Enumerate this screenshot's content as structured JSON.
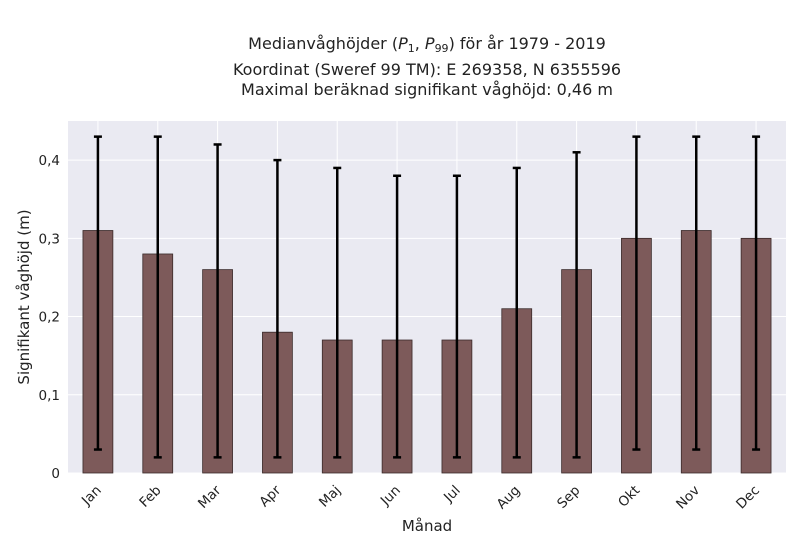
{
  "title": {
    "line1_prefix": "Medianvåghöjder (",
    "p_symbol": "P",
    "sub1": "1",
    "separator": ", ",
    "sub2": "99",
    "line1_suffix": ") för år 1979 - 2019",
    "line2": "Koordinat (Sweref 99 TM): E 269358, N 6355596",
    "line3": "Maximal beräknad signifikant våghöjd: 0,46 m"
  },
  "chart_data": {
    "type": "bar",
    "categories": [
      "Jan",
      "Feb",
      "Mar",
      "Apr",
      "Maj",
      "Jun",
      "Jul",
      "Aug",
      "Sep",
      "Okt",
      "Nov",
      "Dec"
    ],
    "values": [
      0.31,
      0.28,
      0.26,
      0.18,
      0.17,
      0.17,
      0.17,
      0.21,
      0.26,
      0.3,
      0.31,
      0.3
    ],
    "error_low": [
      0.03,
      0.02,
      0.02,
      0.02,
      0.02,
      0.02,
      0.02,
      0.02,
      0.02,
      0.03,
      0.03,
      0.03
    ],
    "error_high": [
      0.43,
      0.43,
      0.42,
      0.4,
      0.39,
      0.38,
      0.38,
      0.39,
      0.41,
      0.43,
      0.43,
      0.43
    ],
    "xlabel": "Månad",
    "ylabel": "Signifikant våghöjd (m)",
    "ylim": [
      0,
      0.45
    ],
    "yticks": [
      0,
      0.1,
      0.2,
      0.3,
      0.4
    ],
    "ytick_labels": [
      "0",
      "0,1",
      "0,2",
      "0,3",
      "0,4"
    ],
    "grid": true,
    "colors": {
      "bar": "#7d5a5a",
      "bar_edge": "#3a2a2a",
      "error": "#000000",
      "plot_background": "#eaeaf2",
      "grid": "#ffffff"
    }
  }
}
